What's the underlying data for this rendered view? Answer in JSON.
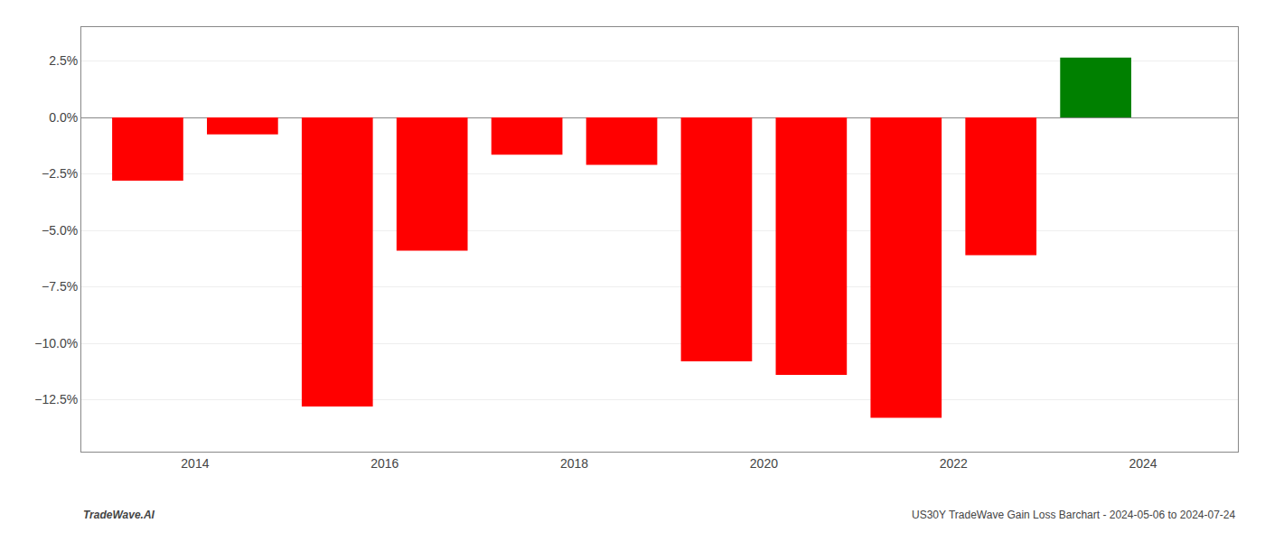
{
  "chart_data": {
    "type": "bar",
    "x": [
      2013.5,
      2014.5,
      2015.5,
      2016.5,
      2017.5,
      2018.5,
      2019.5,
      2020.5,
      2021.5,
      2022.5,
      2023.5
    ],
    "values": [
      -2.8,
      -0.75,
      -12.8,
      -5.9,
      -1.65,
      -2.1,
      -10.8,
      -11.4,
      -13.3,
      -6.1,
      2.65
    ],
    "colors": [
      "#ff0000",
      "#ff0000",
      "#ff0000",
      "#ff0000",
      "#ff0000",
      "#ff0000",
      "#ff0000",
      "#ff0000",
      "#ff0000",
      "#ff0000",
      "#008000"
    ],
    "xlim": [
      2012.8,
      2025.0
    ],
    "xticks": [
      2014,
      2016,
      2018,
      2020,
      2022,
      2024
    ],
    "ylim": [
      -14.8,
      4.0
    ],
    "yticks": [
      {
        "value": 2.5,
        "label": "2.5%"
      },
      {
        "value": 0.0,
        "label": "0.0%"
      },
      {
        "value": -2.5,
        "label": "−2.5%"
      },
      {
        "value": -5.0,
        "label": "−5.0%"
      },
      {
        "value": -7.5,
        "label": "−7.5%"
      },
      {
        "value": -10.0,
        "label": "−10.0%"
      },
      {
        "value": -12.5,
        "label": "−12.5%"
      }
    ],
    "grid": true,
    "annotations": [
      "TradeWave.AI",
      "US30Y TradeWave Gain Loss Barchart - 2024-05-06 to 2024-07-24"
    ]
  }
}
